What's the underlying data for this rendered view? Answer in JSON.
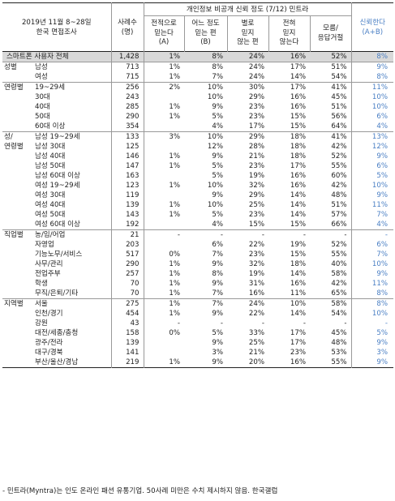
{
  "header": {
    "survey_line1": "2019년 11월 8~28일",
    "survey_line2": "한국 면접조사",
    "sample_label_1": "사례수",
    "sample_label_2": "(명)",
    "group_title": "개인정보 비공개 신뢰 정도 (7/12) 민트라",
    "cols": [
      {
        "l1": "전적으로",
        "l2": "믿는다",
        "l3": "(A)"
      },
      {
        "l1": "어느 정도",
        "l2": "믿는 편",
        "l3": "(B)"
      },
      {
        "l1": "별로",
        "l2": "믿지",
        "l3": "않는 편"
      },
      {
        "l1": "전혀",
        "l2": "믿지",
        "l3": "않는다"
      },
      {
        "l1": "모름/",
        "l2": "응답거절",
        "l3": ""
      },
      {
        "l1": "신뢰한다",
        "l2": "(A+B)",
        "l3": ""
      }
    ]
  },
  "rows": [
    {
      "cat": "",
      "sub": "스마트폰 사용자 전체",
      "n": "1,428",
      "a": "1%",
      "b": "8%",
      "c": "24%",
      "d": "16%",
      "e": "52%",
      "t": "8%"
    },
    {
      "cat": "성별",
      "sub": "남성",
      "n": "713",
      "a": "1%",
      "b": "8%",
      "c": "24%",
      "d": "17%",
      "e": "51%",
      "t": "9%"
    },
    {
      "cat": "",
      "sub": "여성",
      "n": "715",
      "a": "1%",
      "b": "7%",
      "c": "24%",
      "d": "14%",
      "e": "54%",
      "t": "8%"
    },
    {
      "cat": "연령별",
      "sub": "19~29세",
      "n": "256",
      "a": "2%",
      "b": "10%",
      "c": "30%",
      "d": "17%",
      "e": "41%",
      "t": "11%"
    },
    {
      "cat": "",
      "sub": "30대",
      "n": "243",
      "a": "",
      "b": "10%",
      "c": "29%",
      "d": "16%",
      "e": "45%",
      "t": "10%"
    },
    {
      "cat": "",
      "sub": "40대",
      "n": "285",
      "a": "1%",
      "b": "9%",
      "c": "23%",
      "d": "16%",
      "e": "51%",
      "t": "10%"
    },
    {
      "cat": "",
      "sub": "50대",
      "n": "290",
      "a": "1%",
      "b": "5%",
      "c": "23%",
      "d": "15%",
      "e": "56%",
      "t": "6%"
    },
    {
      "cat": "",
      "sub": "60대 이상",
      "n": "354",
      "a": "",
      "b": "4%",
      "c": "17%",
      "d": "15%",
      "e": "64%",
      "t": "4%"
    },
    {
      "cat": "성/",
      "sub": "남성 19~29세",
      "n": "133",
      "a": "3%",
      "b": "10%",
      "c": "29%",
      "d": "18%",
      "e": "41%",
      "t": "13%"
    },
    {
      "cat": "연령별",
      "sub": "남성 30대",
      "n": "125",
      "a": "",
      "b": "12%",
      "c": "28%",
      "d": "18%",
      "e": "42%",
      "t": "12%"
    },
    {
      "cat": "",
      "sub": "남성 40대",
      "n": "146",
      "a": "1%",
      "b": "9%",
      "c": "21%",
      "d": "18%",
      "e": "52%",
      "t": "9%"
    },
    {
      "cat": "",
      "sub": "남성 50대",
      "n": "147",
      "a": "1%",
      "b": "5%",
      "c": "23%",
      "d": "17%",
      "e": "55%",
      "t": "6%"
    },
    {
      "cat": "",
      "sub": "남성 60대 이상",
      "n": "163",
      "a": "",
      "b": "5%",
      "c": "19%",
      "d": "16%",
      "e": "60%",
      "t": "5%"
    },
    {
      "cat": "",
      "sub": "여성 19~29세",
      "n": "123",
      "a": "1%",
      "b": "10%",
      "c": "32%",
      "d": "16%",
      "e": "42%",
      "t": "10%"
    },
    {
      "cat": "",
      "sub": "여성 30대",
      "n": "119",
      "a": "",
      "b": "9%",
      "c": "29%",
      "d": "14%",
      "e": "48%",
      "t": "9%"
    },
    {
      "cat": "",
      "sub": "여성 40대",
      "n": "139",
      "a": "1%",
      "b": "10%",
      "c": "25%",
      "d": "14%",
      "e": "51%",
      "t": "11%"
    },
    {
      "cat": "",
      "sub": "여성 50대",
      "n": "143",
      "a": "1%",
      "b": "5%",
      "c": "23%",
      "d": "14%",
      "e": "57%",
      "t": "7%"
    },
    {
      "cat": "",
      "sub": "여성 60대 이상",
      "n": "192",
      "a": "",
      "b": "4%",
      "c": "15%",
      "d": "15%",
      "e": "66%",
      "t": "4%"
    },
    {
      "cat": "직업별",
      "sub": "농/임/어업",
      "n": "21",
      "a": "-",
      "b": "-",
      "c": "-",
      "d": "-",
      "e": "-",
      "t": "-"
    },
    {
      "cat": "",
      "sub": "자영업",
      "n": "203",
      "a": "",
      "b": "6%",
      "c": "22%",
      "d": "19%",
      "e": "52%",
      "t": "6%"
    },
    {
      "cat": "",
      "sub": "기능노무/서비스",
      "n": "517",
      "a": "0%",
      "b": "7%",
      "c": "23%",
      "d": "15%",
      "e": "55%",
      "t": "7%"
    },
    {
      "cat": "",
      "sub": "사무/관리",
      "n": "290",
      "a": "1%",
      "b": "9%",
      "c": "32%",
      "d": "18%",
      "e": "40%",
      "t": "10%"
    },
    {
      "cat": "",
      "sub": "전업주부",
      "n": "257",
      "a": "1%",
      "b": "8%",
      "c": "19%",
      "d": "14%",
      "e": "58%",
      "t": "9%"
    },
    {
      "cat": "",
      "sub": "학생",
      "n": "70",
      "a": "1%",
      "b": "9%",
      "c": "31%",
      "d": "16%",
      "e": "42%",
      "t": "11%"
    },
    {
      "cat": "",
      "sub": "무직/은퇴/기타",
      "n": "70",
      "a": "1%",
      "b": "7%",
      "c": "16%",
      "d": "11%",
      "e": "65%",
      "t": "8%"
    },
    {
      "cat": "지역별",
      "sub": "서울",
      "n": "275",
      "a": "1%",
      "b": "7%",
      "c": "24%",
      "d": "10%",
      "e": "58%",
      "t": "8%"
    },
    {
      "cat": "",
      "sub": "인천/경기",
      "n": "454",
      "a": "1%",
      "b": "9%",
      "c": "22%",
      "d": "14%",
      "e": "54%",
      "t": "10%"
    },
    {
      "cat": "",
      "sub": "강원",
      "n": "43",
      "a": "-",
      "b": "-",
      "c": "-",
      "d": "-",
      "e": "-",
      "t": "-"
    },
    {
      "cat": "",
      "sub": "대전/세종/충청",
      "n": "158",
      "a": "0%",
      "b": "5%",
      "c": "33%",
      "d": "17%",
      "e": "45%",
      "t": "5%"
    },
    {
      "cat": "",
      "sub": "광주/전라",
      "n": "139",
      "a": "",
      "b": "9%",
      "c": "25%",
      "d": "17%",
      "e": "48%",
      "t": "9%"
    },
    {
      "cat": "",
      "sub": "대구/경북",
      "n": "141",
      "a": "",
      "b": "3%",
      "c": "21%",
      "d": "23%",
      "e": "53%",
      "t": "3%"
    },
    {
      "cat": "",
      "sub": "부산/울산/경남",
      "n": "219",
      "a": "1%",
      "b": "9%",
      "c": "20%",
      "d": "16%",
      "e": "55%",
      "t": "9%"
    }
  ],
  "footnote": "- 민트라(Myntra)는 인도 온라인 패션 유통기업. 50사례 미만은 수치 제시하지 않음. 한국갤럽"
}
